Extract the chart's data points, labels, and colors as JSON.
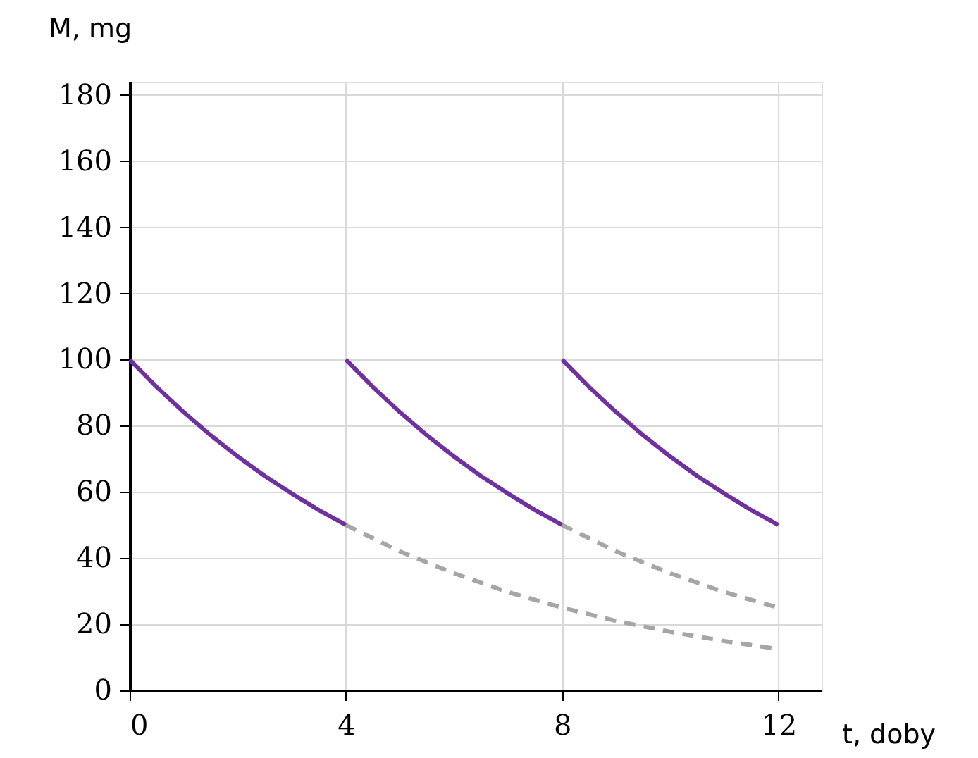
{
  "chart_data": {
    "type": "line",
    "xlabel": "t, doby",
    "ylabel": "M, mg",
    "xlim": [
      0,
      12.8
    ],
    "xticks": [
      0,
      4,
      8,
      12
    ],
    "ylim": [
      0,
      184
    ],
    "yticks": [
      0,
      20,
      40,
      60,
      80,
      100,
      120,
      140,
      160,
      180
    ],
    "grid": true,
    "series": [
      {
        "color": "#a6a6a6",
        "line_style": "dashed",
        "x": [
          4,
          5,
          6,
          7,
          8,
          9,
          10,
          11,
          12
        ],
        "values": [
          50,
          42.0,
          35.4,
          29.7,
          25,
          21.0,
          17.7,
          14.9,
          12.5
        ]
      },
      {
        "color": "#a6a6a6",
        "line_style": "dashed",
        "x": [
          8,
          9,
          10,
          11,
          12
        ],
        "values": [
          50,
          42.0,
          35.4,
          29.7,
          25
        ]
      },
      {
        "color": "#7030a0",
        "line_style": "solid",
        "x": [
          0,
          0.5,
          1,
          1.5,
          2,
          2.5,
          3,
          3.5,
          4
        ],
        "values": [
          100,
          91.7,
          84.1,
          77.1,
          70.7,
          64.8,
          59.5,
          54.5,
          50
        ]
      },
      {
        "color": "#7030a0",
        "line_style": "solid",
        "x": [
          4,
          4.5,
          5,
          5.5,
          6,
          6.5,
          7,
          7.5,
          8
        ],
        "values": [
          100,
          91.7,
          84.1,
          77.1,
          70.7,
          64.8,
          59.5,
          54.5,
          50
        ]
      },
      {
        "color": "#7030a0",
        "line_style": "solid",
        "x": [
          8,
          8.5,
          9,
          9.5,
          10,
          10.5,
          11,
          11.5,
          12
        ],
        "values": [
          100,
          91.7,
          84.1,
          77.1,
          70.7,
          64.8,
          59.5,
          54.5,
          50
        ]
      }
    ]
  }
}
